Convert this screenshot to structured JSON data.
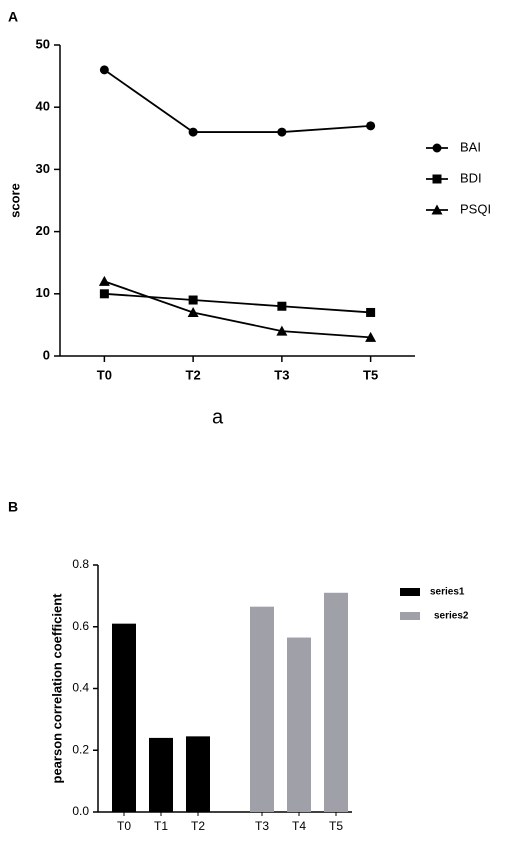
{
  "chart_data": [
    {
      "type": "line",
      "panel": "A",
      "y_label": "score",
      "caption": "a",
      "categories": [
        "T0",
        "T2",
        "T3",
        "T5"
      ],
      "series": [
        {
          "name": "BAI",
          "color": "#000000",
          "marker": "circle",
          "values": [
            46,
            36,
            36,
            37
          ]
        },
        {
          "name": "BDI",
          "color": "#000000",
          "marker": "square",
          "values": [
            10,
            9,
            8,
            7
          ]
        },
        {
          "name": "PSQI",
          "color": "#000000",
          "marker": "triangle",
          "values": [
            12,
            7,
            4,
            3
          ]
        }
      ],
      "ylim": [
        0,
        50
      ],
      "yticks": [
        0,
        10,
        20,
        30,
        40,
        50
      ],
      "legend": "right"
    },
    {
      "type": "bar",
      "panel": "B",
      "y_label": "pearson correlation coefficient",
      "categories": [
        "T0",
        "T1",
        "T2",
        "T3",
        "T4",
        "T5"
      ],
      "series": [
        {
          "name": "series1",
          "color": "#000000",
          "values": [
            0.61,
            0.24,
            0.245,
            null,
            null,
            null
          ]
        },
        {
          "name": "series2",
          "color": "#a0a0a8",
          "values": [
            null,
            null,
            null,
            0.665,
            0.565,
            0.71
          ]
        }
      ],
      "ylim": [
        0,
        0.8
      ],
      "yticks": [
        {
          "value": 0,
          "label": "0.0"
        },
        0.2,
        0.4,
        0.6,
        0.8
      ],
      "legend": "right"
    }
  ]
}
